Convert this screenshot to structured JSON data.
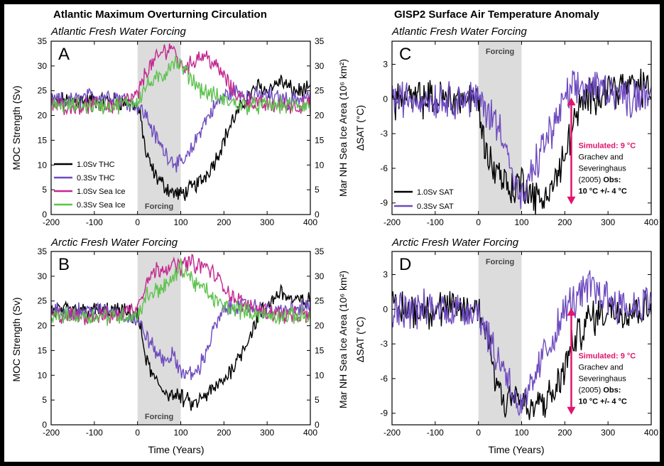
{
  "colors": {
    "black": "#000000",
    "purple": "#6e4bbf",
    "magenta": "#c4288f",
    "green": "#5fc24f",
    "forcing_shade": "#dcdcdc",
    "arrow": "#e0156b"
  },
  "left_column": {
    "title": "Atlantic Maximum Overturning Circulation",
    "ylabel": "MOC Strength (Sv)",
    "y2label": "Mar NH Sea Ice Area (10⁶ km²)",
    "xlabel": "Time (Years)"
  },
  "right_column": {
    "title": "GISP2 Surface Air Temperature Anomaly",
    "ylabel": "ΔSAT (°C)",
    "xlabel": "Time (Years)"
  },
  "panels": {
    "A": {
      "letter": "A",
      "subtitle": "Atlantic Fresh Water Forcing",
      "forcing": "Forcing"
    },
    "B": {
      "letter": "B",
      "subtitle": "Arctic Fresh Water Forcing",
      "forcing": "Forcing"
    },
    "C": {
      "letter": "C",
      "subtitle": "Atlantic Fresh Water Forcing",
      "forcing": "Forcing"
    },
    "D": {
      "letter": "D",
      "subtitle": "Arctic Fresh Water Forcing",
      "forcing": "Forcing"
    }
  },
  "legend_left": [
    "1.0Sv THC",
    "0.3Sv THC",
    "1.0Sv Sea Ice",
    "0.3Sv Sea Ice"
  ],
  "legend_right": [
    "1.0Sv SAT",
    "0.3Sv SAT"
  ],
  "annotation": {
    "simulated": "Simulated: 9 °C",
    "line1": "Grachev and",
    "line2": "Severinghaus",
    "line3": "(2005)",
    "obs": "Obs:",
    "obs_value": "10 °C +/- 4 °C"
  },
  "chart_data": [
    {
      "panel": "A",
      "type": "line",
      "title": "Atlantic Maximum Overturning Circulation",
      "subtitle": "Atlantic Fresh Water Forcing",
      "xlabel": "Time (Years)",
      "ylabel": "MOC Strength (Sv)",
      "y2label": "Mar NH Sea Ice Area (10⁶ km²)",
      "xlim": [
        -200,
        400
      ],
      "ylim": [
        0,
        35
      ],
      "y2lim": [
        0,
        35
      ],
      "xticks": [
        -200,
        -100,
        0,
        100,
        200,
        300,
        400
      ],
      "yticks": [
        0,
        5,
        10,
        15,
        20,
        25,
        30,
        35
      ],
      "forcing_range": [
        0,
        100
      ],
      "legend": "lower-left",
      "series": [
        {
          "name": "1.0Sv THC",
          "color": "#000000",
          "x": [
            -200,
            -150,
            -100,
            -50,
            0,
            10,
            20,
            40,
            60,
            80,
            100,
            120,
            150,
            180,
            200,
            220,
            250,
            280,
            300,
            330,
            360,
            400
          ],
          "y": [
            23,
            23,
            23,
            23,
            22,
            18,
            12,
            8,
            6,
            4.5,
            4,
            5,
            7,
            11,
            15,
            19,
            23,
            26,
            25,
            27,
            25,
            25
          ]
        },
        {
          "name": "0.3Sv THC",
          "color": "#6e4bbf",
          "x": [
            -200,
            -150,
            -100,
            -50,
            0,
            20,
            40,
            60,
            80,
            100,
            120,
            150,
            180,
            200,
            230,
            260,
            300,
            350,
            400
          ],
          "y": [
            23,
            23,
            24,
            24,
            22,
            20,
            16,
            13,
            11,
            10,
            12,
            18,
            22,
            24,
            25,
            24,
            24,
            23,
            24
          ]
        },
        {
          "name": "1.0Sv Sea Ice",
          "color": "#c4288f",
          "x": [
            -200,
            -150,
            -100,
            -50,
            0,
            20,
            40,
            60,
            80,
            100,
            120,
            140,
            160,
            180,
            200,
            220,
            250,
            300,
            350,
            400
          ],
          "y": [
            22,
            22,
            22,
            22,
            24,
            29,
            31,
            33,
            34,
            30,
            30,
            32,
            32,
            30,
            28,
            25,
            23,
            22,
            22,
            22
          ]
        },
        {
          "name": "0.3Sv Sea Ice",
          "color": "#5fc24f",
          "x": [
            -200,
            -150,
            -100,
            -50,
            0,
            20,
            40,
            60,
            80,
            100,
            120,
            150,
            180,
            200,
            250,
            300,
            350,
            400
          ],
          "y": [
            22,
            22,
            22,
            22,
            23,
            26,
            27,
            28,
            31,
            30,
            28,
            25,
            24,
            23,
            22,
            22,
            22,
            22
          ]
        }
      ]
    },
    {
      "panel": "B",
      "type": "line",
      "subtitle": "Arctic Fresh Water Forcing",
      "xlabel": "Time (Years)",
      "ylabel": "MOC Strength (Sv)",
      "y2label": "Mar NH Sea Ice Area (10⁶ km²)",
      "xlim": [
        -200,
        400
      ],
      "ylim": [
        0,
        35
      ],
      "y2lim": [
        0,
        35
      ],
      "xticks": [
        -200,
        -100,
        0,
        100,
        200,
        300,
        400
      ],
      "yticks": [
        0,
        5,
        10,
        15,
        20,
        25,
        30,
        35
      ],
      "forcing_range": [
        0,
        100
      ],
      "series": [
        {
          "name": "1.0Sv THC",
          "color": "#000000",
          "x": [
            -200,
            -150,
            -100,
            -50,
            0,
            10,
            20,
            40,
            60,
            80,
            100,
            130,
            160,
            200,
            230,
            260,
            280,
            300,
            330,
            360,
            400
          ],
          "y": [
            23,
            23,
            23,
            23,
            22,
            18,
            13,
            9,
            7,
            6,
            5.5,
            4,
            6,
            9,
            13,
            18,
            22,
            24,
            27,
            25,
            25
          ]
        },
        {
          "name": "0.3Sv THC",
          "color": "#6e4bbf",
          "x": [
            -200,
            -150,
            -100,
            -50,
            0,
            20,
            40,
            60,
            80,
            100,
            120,
            140,
            160,
            180,
            200,
            230,
            260,
            300,
            350,
            400
          ],
          "y": [
            23,
            23,
            23,
            23,
            21,
            18,
            15,
            13,
            14,
            11,
            10,
            11,
            15,
            20,
            23,
            24,
            24,
            23,
            23,
            24
          ]
        },
        {
          "name": "1.0Sv Sea Ice",
          "color": "#c4288f",
          "x": [
            -200,
            -150,
            -100,
            -50,
            0,
            20,
            40,
            60,
            80,
            100,
            120,
            140,
            160,
            180,
            200,
            220,
            250,
            300,
            350,
            400
          ],
          "y": [
            22,
            22,
            22,
            22,
            24,
            29,
            31,
            32,
            32,
            32,
            33,
            32,
            32,
            30,
            28,
            26,
            24,
            23,
            22,
            22
          ]
        },
        {
          "name": "0.3Sv Sea Ice",
          "color": "#5fc24f",
          "x": [
            -200,
            -150,
            -100,
            -50,
            0,
            20,
            40,
            60,
            80,
            100,
            120,
            140,
            160,
            180,
            200,
            250,
            300,
            350,
            400
          ],
          "y": [
            22,
            22,
            22,
            22,
            22,
            26,
            27,
            28,
            29,
            32,
            30,
            28,
            27,
            25,
            24,
            23,
            22,
            22,
            22
          ]
        }
      ]
    },
    {
      "panel": "C",
      "type": "line",
      "title": "GISP2 Surface Air Temperature Anomaly",
      "subtitle": "Atlantic Fresh Water Forcing",
      "xlabel": "Time (Years)",
      "ylabel": "ΔSAT (°C)",
      "xlim": [
        -200,
        400
      ],
      "ylim": [
        -10,
        5
      ],
      "xticks": [
        -200,
        -100,
        0,
        100,
        200,
        300,
        400
      ],
      "yticks": [
        -9,
        -6,
        -3,
        0,
        3
      ],
      "forcing_range": [
        0,
        100
      ],
      "legend": "lower-left",
      "series": [
        {
          "name": "1.0Sv SAT",
          "color": "#000000",
          "x": [
            -200,
            -150,
            -100,
            -50,
            0,
            10,
            20,
            40,
            60,
            80,
            100,
            120,
            140,
            160,
            180,
            200,
            220,
            250,
            300,
            350,
            400
          ],
          "y": [
            0,
            0,
            0,
            0,
            0,
            -3,
            -5,
            -6,
            -7,
            -8,
            -7,
            -8,
            -9,
            -8,
            -7,
            -5,
            -2,
            0,
            1,
            1,
            1
          ]
        },
        {
          "name": "0.3Sv SAT",
          "color": "#6e4bbf",
          "x": [
            -200,
            -150,
            -100,
            -50,
            0,
            20,
            40,
            60,
            80,
            100,
            120,
            150,
            180,
            200,
            230,
            260,
            300,
            350,
            400
          ],
          "y": [
            0,
            0,
            0,
            0,
            0,
            -1,
            -2,
            -3,
            -7,
            -9,
            -7,
            -4,
            -2,
            0,
            1,
            1,
            1,
            0,
            1
          ]
        }
      ]
    },
    {
      "panel": "D",
      "type": "line",
      "subtitle": "Arctic Fresh Water Forcing",
      "xlabel": "Time (Years)",
      "ylabel": "ΔSAT (°C)",
      "xlim": [
        -200,
        400
      ],
      "ylim": [
        -10,
        5
      ],
      "xticks": [
        -200,
        -100,
        0,
        100,
        200,
        300,
        400
      ],
      "yticks": [
        -9,
        -6,
        -3,
        0,
        3
      ],
      "forcing_range": [
        0,
        100
      ],
      "series": [
        {
          "name": "1.0Sv SAT",
          "color": "#000000",
          "x": [
            -200,
            -150,
            -100,
            -50,
            0,
            20,
            40,
            60,
            80,
            100,
            120,
            140,
            160,
            180,
            200,
            220,
            250,
            300,
            350,
            400
          ],
          "y": [
            0,
            0,
            0,
            0,
            0,
            -2,
            -6,
            -8,
            -7,
            -8,
            -9,
            -8,
            -8,
            -7,
            -5,
            -3,
            -1,
            0,
            0,
            0
          ]
        },
        {
          "name": "0.3Sv SAT",
          "color": "#6e4bbf",
          "x": [
            -200,
            -150,
            -100,
            -50,
            0,
            20,
            40,
            60,
            80,
            100,
            120,
            150,
            180,
            200,
            230,
            260,
            300,
            350,
            400
          ],
          "y": [
            0,
            0,
            0,
            0,
            0,
            -2,
            -4,
            -5,
            -7,
            -9,
            -7,
            -4,
            -2,
            0,
            1,
            2,
            1,
            0,
            1
          ]
        }
      ]
    }
  ]
}
